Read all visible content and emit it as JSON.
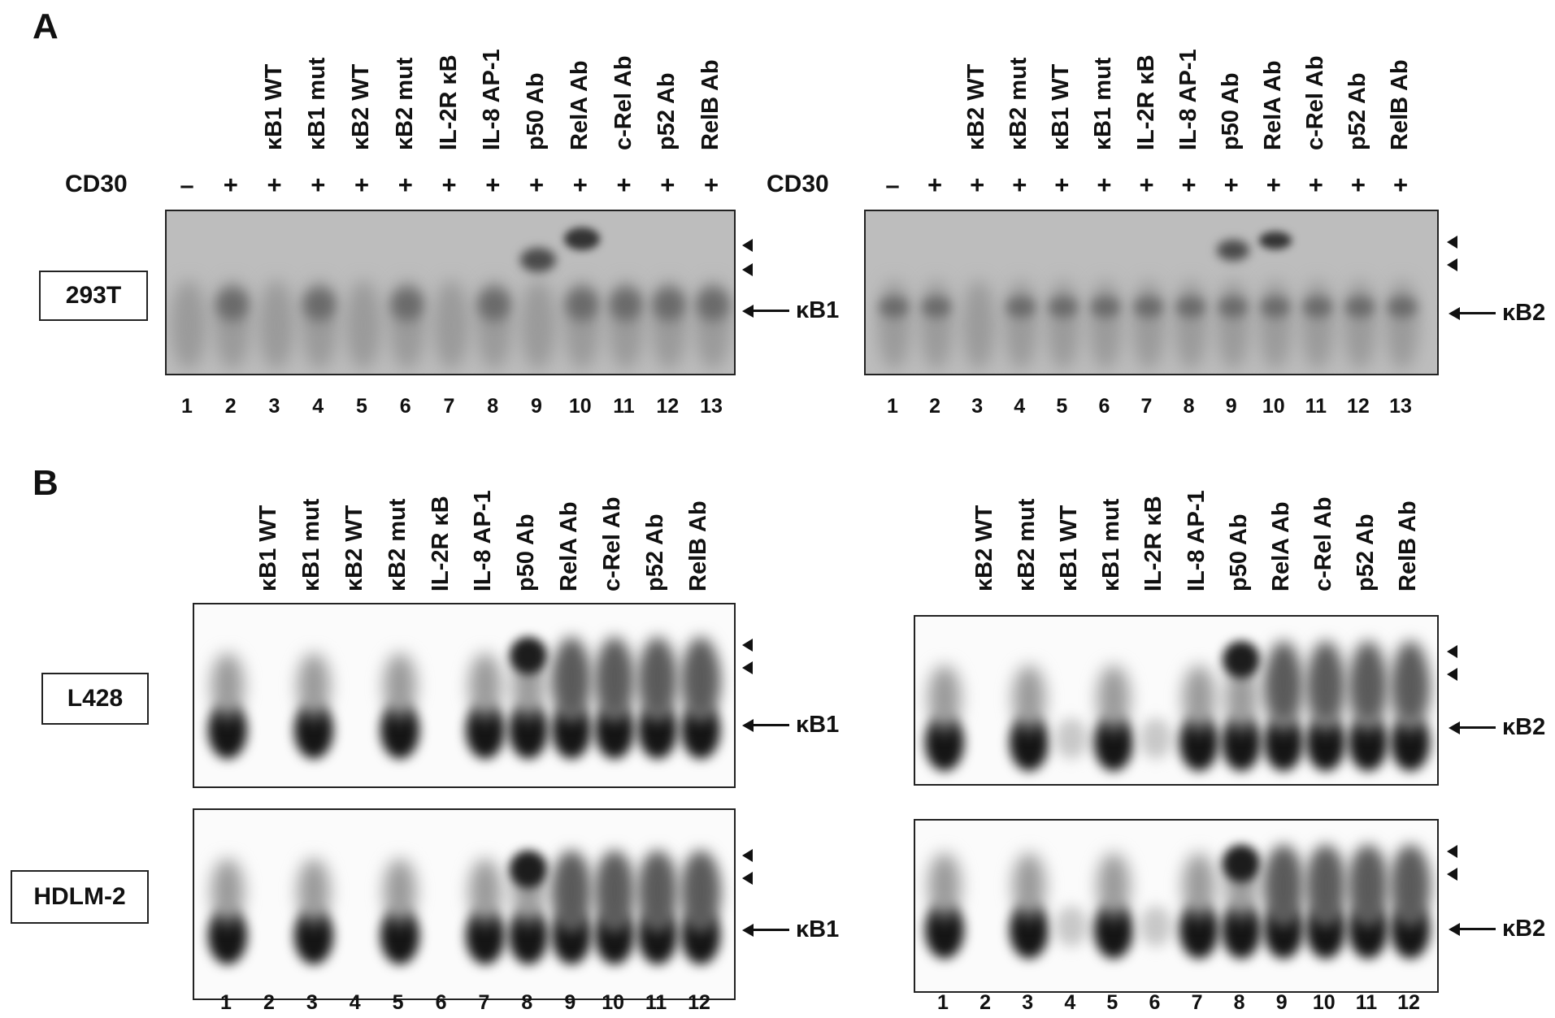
{
  "panel_a": {
    "letter": "A",
    "cd30_label": "CD30",
    "cell_line": "293T",
    "left": {
      "lane_labels": [
        "κB1 WT",
        "κB1 mut",
        "κB2 WT",
        "κB2 mut",
        "IL-2R κB",
        "IL-8 AP-1",
        "p50 Ab",
        "RelA Ab",
        "c-Rel Ab",
        "p52 Ab",
        "RelB Ab"
      ],
      "cd30_signs": [
        "–",
        "+",
        "+",
        "+",
        "+",
        "+",
        "+",
        "+",
        "+",
        "+",
        "+",
        "+",
        "+"
      ],
      "lane_numbers": [
        "1",
        "2",
        "3",
        "4",
        "5",
        "6",
        "7",
        "8",
        "9",
        "10",
        "11",
        "12",
        "13"
      ],
      "band_label": "κB1"
    },
    "right": {
      "lane_labels": [
        "κB2 WT",
        "κB2 mut",
        "κB1 WT",
        "κB1 mut",
        "IL-2R κB",
        "IL-8 AP-1",
        "p50 Ab",
        "RelA Ab",
        "c-Rel Ab",
        "p52 Ab",
        "RelB Ab"
      ],
      "cd30_signs": [
        "–",
        "+",
        "+",
        "+",
        "+",
        "+",
        "+",
        "+",
        "+",
        "+",
        "+",
        "+",
        "+"
      ],
      "lane_numbers": [
        "1",
        "2",
        "3",
        "4",
        "5",
        "6",
        "7",
        "8",
        "9",
        "10",
        "11",
        "12",
        "13"
      ],
      "band_label": "κB2"
    }
  },
  "panel_b": {
    "letter": "B",
    "cell_lines": [
      "L428",
      "HDLM-2"
    ],
    "left": {
      "lane_labels": [
        "κB1 WT",
        "κB1 mut",
        "κB2 WT",
        "κB2 mut",
        "IL-2R κB",
        "IL-8 AP-1",
        "p50 Ab",
        "RelA Ab",
        "c-Rel Ab",
        "p52 Ab",
        "RelB Ab"
      ],
      "lane_numbers": [
        "1",
        "2",
        "3",
        "4",
        "5",
        "6",
        "7",
        "8",
        "9",
        "10",
        "11",
        "12"
      ],
      "band_label": "κB1"
    },
    "right": {
      "lane_labels": [
        "κB2 WT",
        "κB2 mut",
        "κB1 WT",
        "κB1 mut",
        "IL-2R κB",
        "IL-8 AP-1",
        "p50 Ab",
        "RelA Ab",
        "c-Rel Ab",
        "p52 Ab",
        "RelB Ab"
      ],
      "lane_numbers": [
        "1",
        "2",
        "3",
        "4",
        "5",
        "6",
        "7",
        "8",
        "9",
        "10",
        "11",
        "12"
      ],
      "band_label": "κB2"
    }
  }
}
